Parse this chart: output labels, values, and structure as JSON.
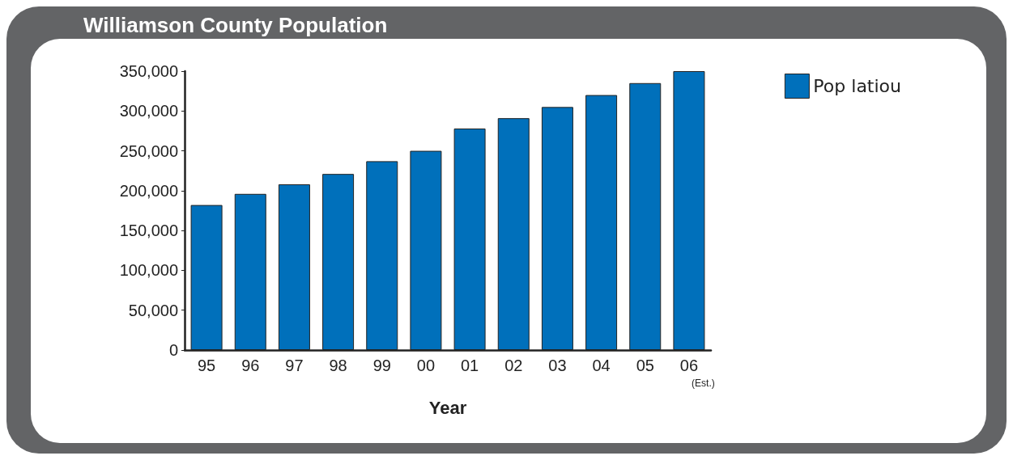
{
  "chart_data": {
    "type": "bar",
    "title": "Williamson County Population",
    "xlabel": "Year",
    "categories": [
      "95",
      "96",
      "97",
      "98",
      "99",
      "00",
      "01",
      "02",
      "03",
      "04",
      "05",
      "06\n(Est.)"
    ],
    "series": [
      {
        "name": "Pop latiou",
        "color": "#0070bb",
        "values": [
          182000,
          196000,
          208000,
          221000,
          237000,
          250000,
          278000,
          291000,
          305000,
          320000,
          335000,
          350000
        ]
      }
    ],
    "ylim": [
      0,
      350000
    ],
    "yticks": [
      0,
      {
        "value": 50000,
        "label": "50,000"
      },
      {
        "value": 100000,
        "label": "100,000"
      },
      {
        "value": 150000,
        "label": "150,000"
      },
      {
        "value": 200000,
        "label": "200,000"
      },
      {
        "value": 250000,
        "label": "250,000"
      },
      {
        "value": 300000,
        "label": "300,000"
      },
      {
        "value": 350000,
        "label": "350,000"
      }
    ],
    "grid": false,
    "legend": "top right"
  }
}
